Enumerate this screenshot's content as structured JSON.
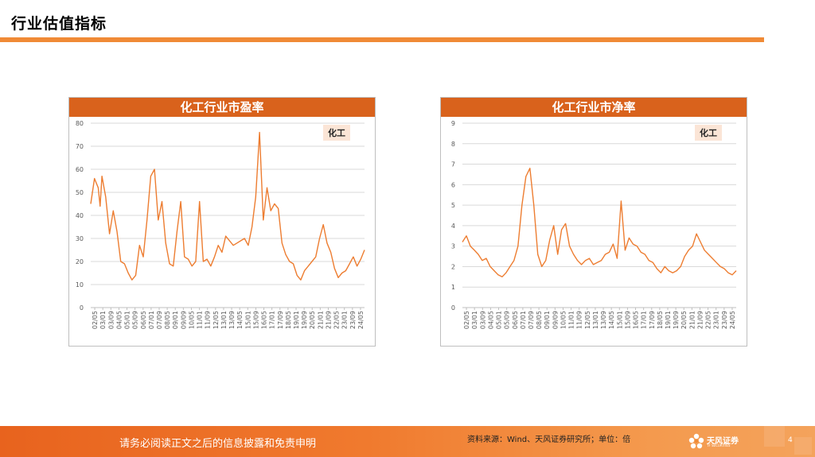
{
  "page": {
    "title": "行业估值指标"
  },
  "charts": [
    {
      "title": "化工行业市盈率",
      "series_label": "化工"
    },
    {
      "title": "化工行业市净率",
      "series_label": "化工"
    }
  ],
  "chart_data": [
    {
      "type": "line",
      "title": "化工行业市盈率",
      "legend": "化工",
      "color": "#ED7D31",
      "ylim": [
        0,
        80
      ],
      "yticks": [
        "0",
        "10",
        "20",
        "30",
        "40",
        "50",
        "60",
        "70",
        "80"
      ],
      "xticks": [
        "02/05",
        "03/01",
        "03/09",
        "04/05",
        "05/01",
        "05/09",
        "06/05",
        "07/01",
        "07/09",
        "08/05",
        "09/01",
        "09/09",
        "10/05",
        "11/01",
        "11/09",
        "12/05",
        "13/01",
        "13/09",
        "14/05",
        "15/01",
        "15/09",
        "16/05",
        "17/01",
        "17/09",
        "18/05",
        "19/01",
        "19/09",
        "20/05",
        "21/01",
        "21/09",
        "22/05",
        "23/01",
        "23/09",
        "24/05"
      ],
      "series": [
        {
          "name": "化工",
          "points": [
            [
              0,
              45
            ],
            [
              1,
              56
            ],
            [
              2,
              52
            ],
            [
              2.5,
              44
            ],
            [
              3,
              57
            ],
            [
              4,
              48
            ],
            [
              5,
              32
            ],
            [
              6,
              42
            ],
            [
              7,
              33
            ],
            [
              8,
              20
            ],
            [
              9,
              19
            ],
            [
              10,
              15
            ],
            [
              11,
              12
            ],
            [
              12,
              14
            ],
            [
              13,
              27
            ],
            [
              14,
              22
            ],
            [
              15,
              38
            ],
            [
              16,
              57
            ],
            [
              17,
              60
            ],
            [
              18,
              38
            ],
            [
              19,
              46
            ],
            [
              20,
              28
            ],
            [
              21,
              19
            ],
            [
              22,
              18
            ],
            [
              23,
              33
            ],
            [
              24,
              46
            ],
            [
              25,
              22
            ],
            [
              26,
              21
            ],
            [
              27,
              18
            ],
            [
              28,
              20
            ],
            [
              29,
              46
            ],
            [
              30,
              20
            ],
            [
              31,
              21
            ],
            [
              32,
              18
            ],
            [
              33,
              22
            ],
            [
              34,
              27
            ],
            [
              35,
              24
            ],
            [
              36,
              31
            ],
            [
              37,
              29
            ],
            [
              38,
              27
            ],
            [
              39,
              28
            ],
            [
              40,
              29
            ],
            [
              41,
              30
            ],
            [
              42,
              27
            ],
            [
              43,
              35
            ],
            [
              44,
              48
            ],
            [
              45,
              76
            ],
            [
              46,
              38
            ],
            [
              47,
              52
            ],
            [
              48,
              42
            ],
            [
              49,
              45
            ],
            [
              50,
              43
            ],
            [
              51,
              28
            ],
            [
              52,
              23
            ],
            [
              53,
              20
            ],
            [
              54,
              19
            ],
            [
              55,
              14
            ],
            [
              56,
              12
            ],
            [
              57,
              16
            ],
            [
              58,
              18
            ],
            [
              59,
              20
            ],
            [
              60,
              22
            ],
            [
              61,
              30
            ],
            [
              62,
              36
            ],
            [
              63,
              28
            ],
            [
              64,
              24
            ],
            [
              65,
              17
            ],
            [
              66,
              13
            ],
            [
              67,
              15
            ],
            [
              68,
              16
            ],
            [
              69,
              19
            ],
            [
              70,
              22
            ],
            [
              71,
              18
            ],
            [
              72,
              21
            ],
            [
              73,
              25
            ]
          ]
        }
      ]
    },
    {
      "type": "line",
      "title": "化工行业市净率",
      "legend": "化工",
      "color": "#ED7D31",
      "ylim": [
        0,
        9
      ],
      "yticks": [
        "0",
        "1",
        "2",
        "3",
        "4",
        "5",
        "6",
        "7",
        "8",
        "9"
      ],
      "xticks": [
        "02/05",
        "03/01",
        "03/09",
        "04/05",
        "05/01",
        "05/09",
        "06/05",
        "07/01",
        "07/09",
        "08/05",
        "09/01",
        "09/09",
        "10/05",
        "11/01",
        "11/09",
        "12/05",
        "13/01",
        "13/09",
        "14/05",
        "15/01",
        "15/09",
        "16/05",
        "17/01",
        "17/09",
        "18/05",
        "19/01",
        "19/09",
        "20/05",
        "21/01",
        "21/09",
        "22/05",
        "23/01",
        "23/09",
        "24/05"
      ],
      "series": [
        {
          "name": "化工",
          "points": [
            [
              0,
              3.2
            ],
            [
              1,
              3.5
            ],
            [
              2,
              3.0
            ],
            [
              3,
              2.8
            ],
            [
              4,
              2.6
            ],
            [
              5,
              2.3
            ],
            [
              6,
              2.4
            ],
            [
              7,
              2.0
            ],
            [
              8,
              1.8
            ],
            [
              9,
              1.6
            ],
            [
              10,
              1.5
            ],
            [
              11,
              1.7
            ],
            [
              12,
              2.0
            ],
            [
              13,
              2.3
            ],
            [
              14,
              3.0
            ],
            [
              15,
              5.0
            ],
            [
              16,
              6.4
            ],
            [
              17,
              6.8
            ],
            [
              18,
              5.0
            ],
            [
              19,
              2.6
            ],
            [
              20,
              2.0
            ],
            [
              21,
              2.3
            ],
            [
              22,
              3.3
            ],
            [
              23,
              4.0
            ],
            [
              24,
              2.6
            ],
            [
              25,
              3.8
            ],
            [
              26,
              4.1
            ],
            [
              27,
              3.0
            ],
            [
              28,
              2.6
            ],
            [
              29,
              2.3
            ],
            [
              30,
              2.1
            ],
            [
              31,
              2.3
            ],
            [
              32,
              2.4
            ],
            [
              33,
              2.1
            ],
            [
              34,
              2.2
            ],
            [
              35,
              2.3
            ],
            [
              36,
              2.6
            ],
            [
              37,
              2.7
            ],
            [
              38,
              3.1
            ],
            [
              39,
              2.4
            ],
            [
              40,
              5.2
            ],
            [
              41,
              2.8
            ],
            [
              42,
              3.4
            ],
            [
              43,
              3.1
            ],
            [
              44,
              3.0
            ],
            [
              45,
              2.7
            ],
            [
              46,
              2.6
            ],
            [
              47,
              2.3
            ],
            [
              48,
              2.2
            ],
            [
              49,
              1.9
            ],
            [
              50,
              1.7
            ],
            [
              51,
              2.0
            ],
            [
              52,
              1.8
            ],
            [
              53,
              1.7
            ],
            [
              54,
              1.8
            ],
            [
              55,
              2.0
            ],
            [
              56,
              2.5
            ],
            [
              57,
              2.8
            ],
            [
              58,
              3.0
            ],
            [
              59,
              3.6
            ],
            [
              60,
              3.2
            ],
            [
              61,
              2.8
            ],
            [
              62,
              2.6
            ],
            [
              63,
              2.4
            ],
            [
              64,
              2.2
            ],
            [
              65,
              2.0
            ],
            [
              66,
              1.9
            ],
            [
              67,
              1.7
            ],
            [
              68,
              1.6
            ],
            [
              69,
              1.8
            ]
          ]
        }
      ]
    }
  ],
  "footer": {
    "disclaimer": "请务必阅读正文之后的信息披露和免责申明",
    "source": "资料来源：Wind、天风证券研究所；单位：倍",
    "logo_text": "天风证券",
    "logo_sub": "TF SECURITIES",
    "page_number": "4"
  }
}
